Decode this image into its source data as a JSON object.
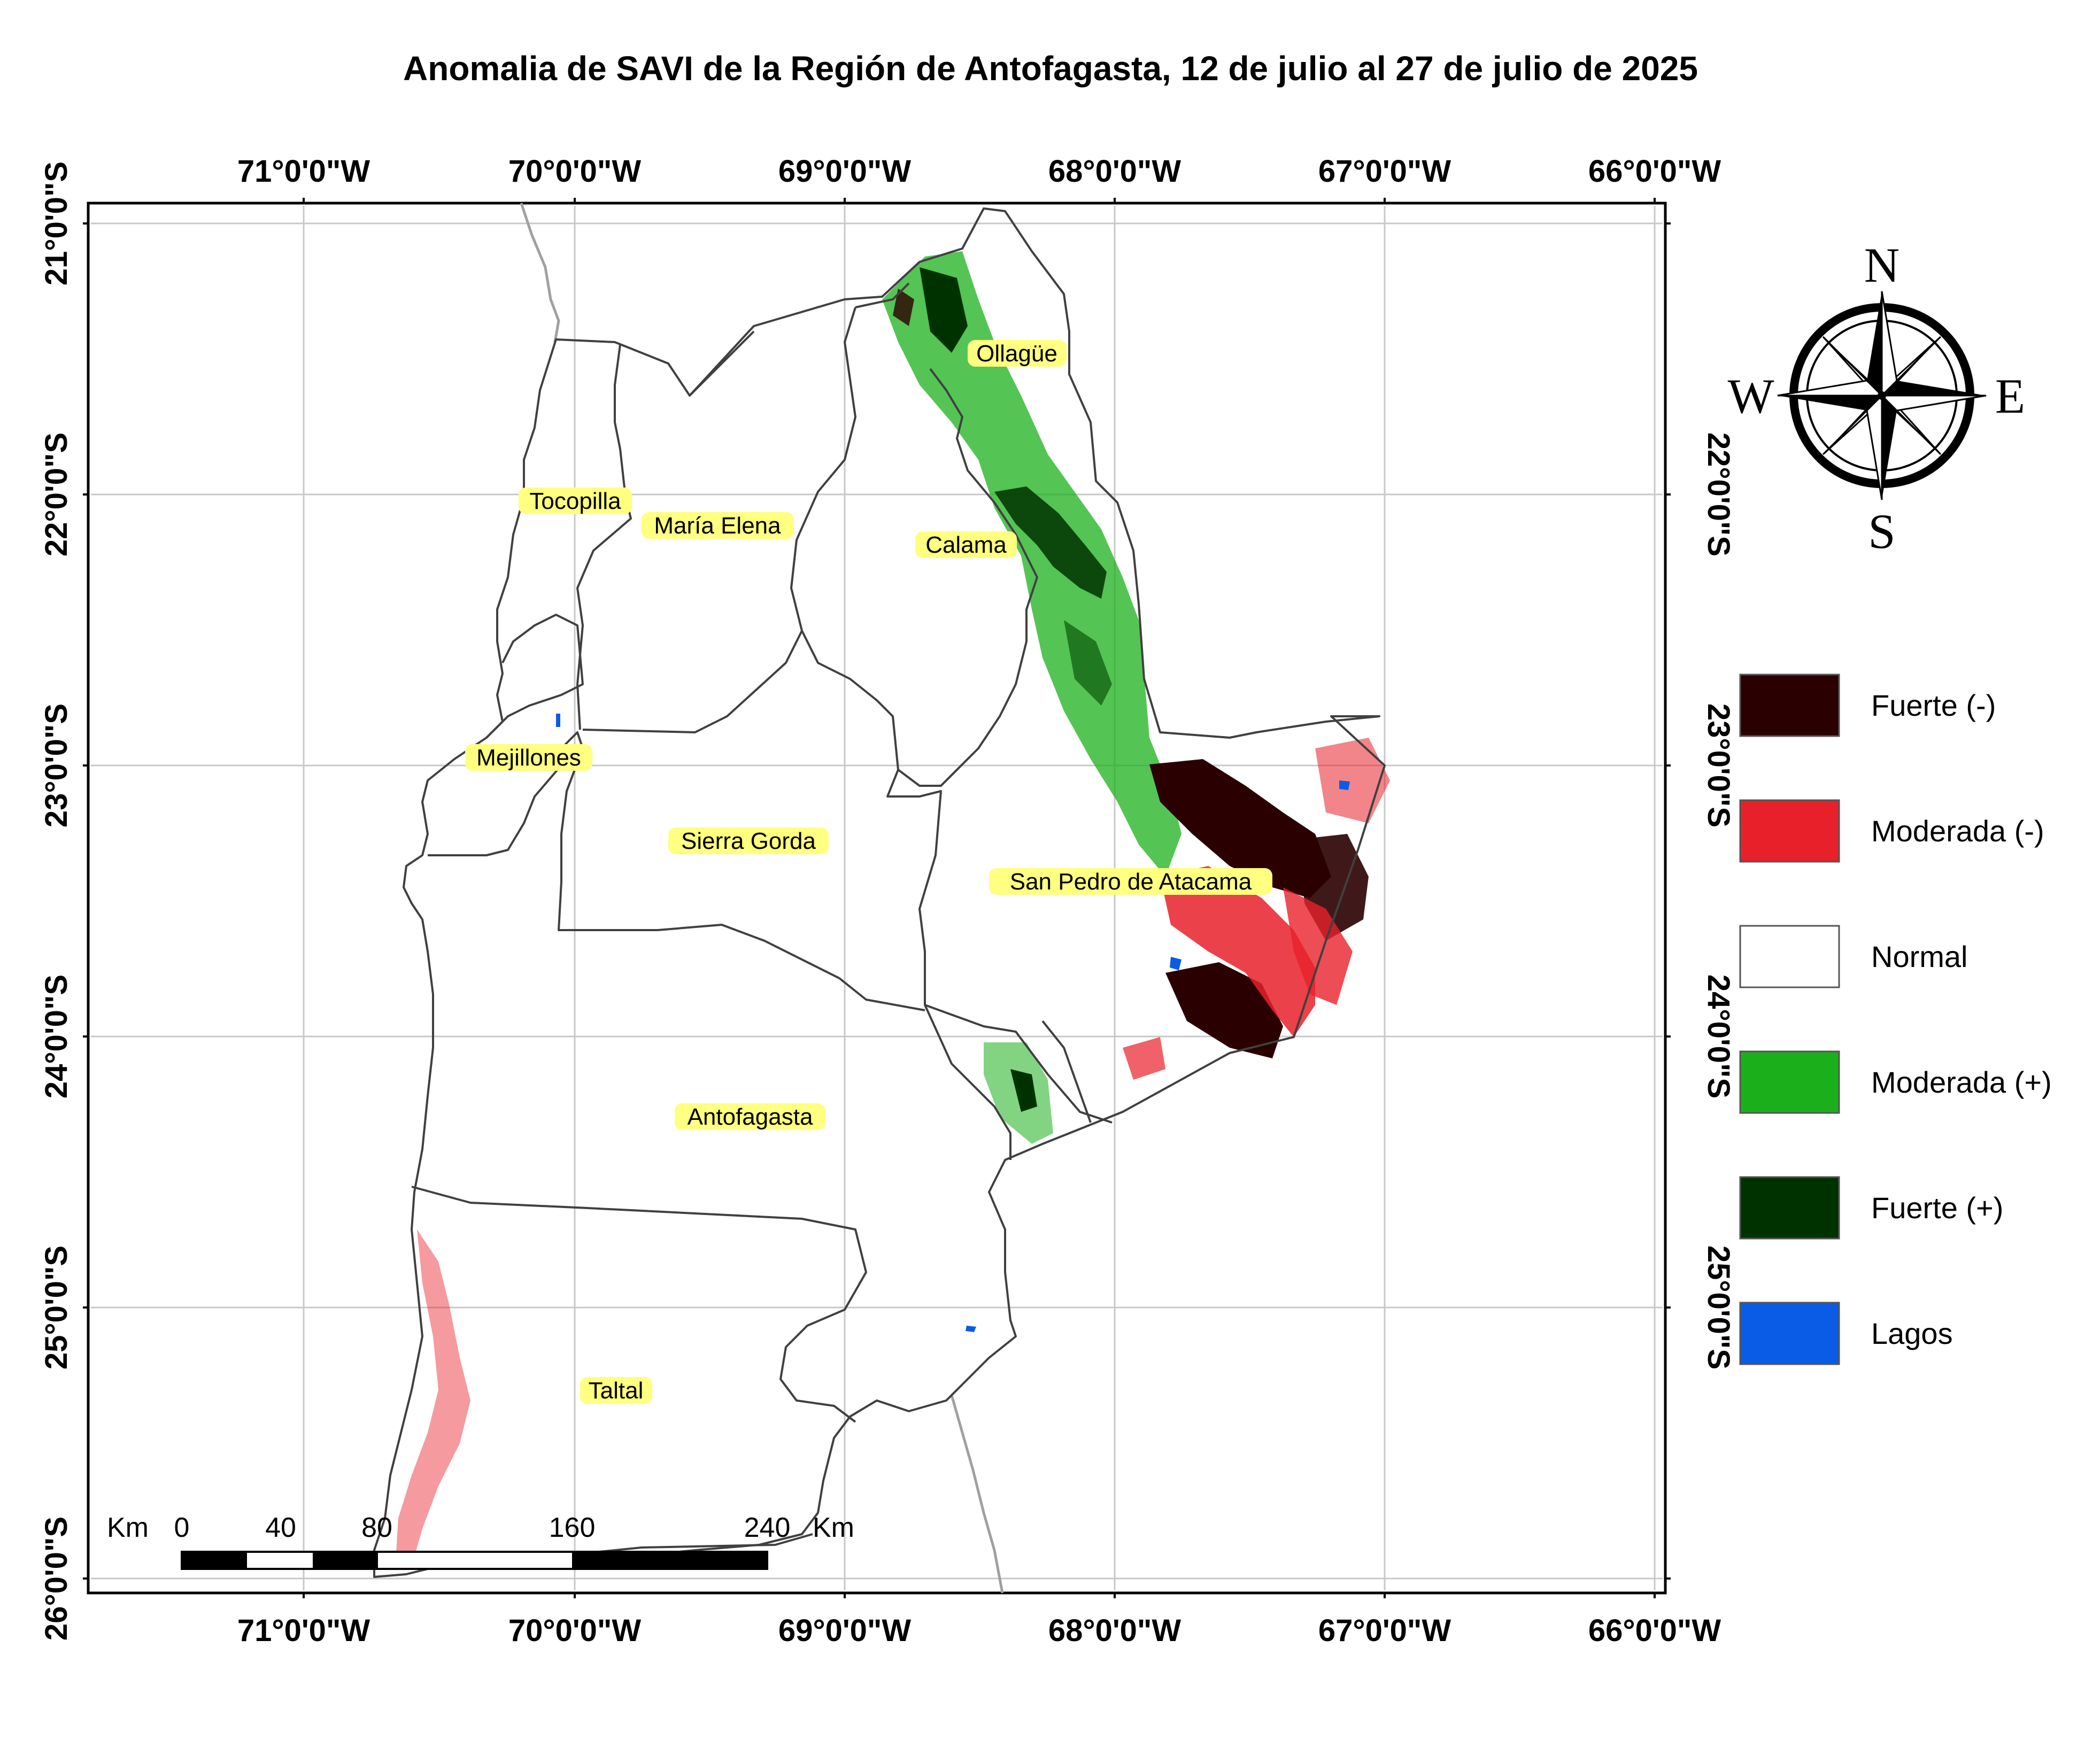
{
  "title": "Anomalia de SAVI de la Región de Antofagasta, 12 de julio al 27 de julio de 2025",
  "axes": {
    "lon_ticks": [
      "71°0'0\"W",
      "70°0'0\"W",
      "69°0'0\"W",
      "68°0'0\"W",
      "67°0'0\"W",
      "66°0'0\"W"
    ],
    "lat_ticks": [
      "21°0'0\"S",
      "22°0'0\"S",
      "23°0'0\"S",
      "24°0'0\"S",
      "25°0'0\"S",
      "26°0'0\"S"
    ]
  },
  "places": [
    "Ollagüe",
    "Tocopilla",
    "María Elena",
    "Calama",
    "Mejillones",
    "Sierra Gorda",
    "San Pedro de Atacama",
    "Antofagasta",
    "Taltal"
  ],
  "compass": {
    "n": "N",
    "s": "S",
    "e": "E",
    "w": "W"
  },
  "legend": [
    {
      "label": "Fuerte (-)",
      "color": "#2a0000"
    },
    {
      "label": "Moderada (-)",
      "color": "#e8202a"
    },
    {
      "label": "Normal",
      "color": "#ffffff"
    },
    {
      "label": "Moderada (+)",
      "color": "#1bb01b"
    },
    {
      "label": "Fuerte (+)",
      "color": "#003200"
    },
    {
      "label": "Lagos",
      "color": "#0a5ce6"
    }
  ],
  "scalebar": {
    "unit": "Km",
    "ticks": [
      "0",
      "40",
      "80",
      "160",
      "240"
    ],
    "unit_end": "Km"
  },
  "colors": {
    "boundary": "#404040",
    "grid": "#c8c8c8",
    "label_bg": "#ffff80",
    "country_border": "#a0a0a0"
  }
}
